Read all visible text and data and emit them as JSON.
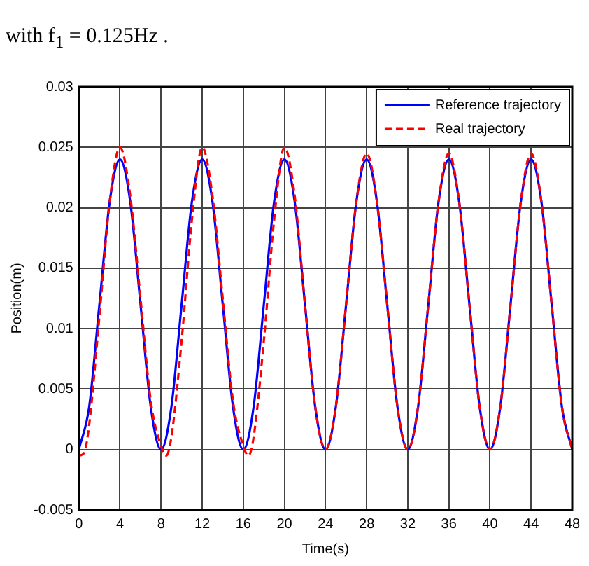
{
  "chart_data": {
    "type": "line",
    "xlabel": "Time(s)",
    "ylabel": "Position(m)",
    "annotations": [
      "with f$_{1}$ = 0.125Hz ."
    ],
    "x": [
      0,
      1,
      2,
      3,
      4,
      5,
      6,
      7,
      8,
      9,
      10,
      11,
      12,
      13,
      14,
      15,
      16,
      17,
      18,
      19,
      20,
      21,
      22,
      23,
      24,
      25,
      26,
      27,
      28,
      29,
      30,
      31,
      32,
      33,
      34,
      35,
      36,
      37,
      38,
      39,
      40,
      41,
      42,
      43,
      44,
      45,
      46,
      47,
      48
    ],
    "series": [
      {
        "name": "Reference trajectory",
        "color": "#0000ff",
        "line_style": "solid",
        "values": [
          0,
          0.0035,
          0.012,
          0.0205,
          0.024,
          0.0205,
          0.012,
          0.0035,
          0,
          0.0035,
          0.012,
          0.0205,
          0.024,
          0.0205,
          0.012,
          0.0035,
          0,
          0.0035,
          0.012,
          0.0205,
          0.024,
          0.0205,
          0.012,
          0.0035,
          0,
          0.0035,
          0.012,
          0.0205,
          0.024,
          0.0205,
          0.012,
          0.0035,
          0,
          0.0035,
          0.012,
          0.0205,
          0.024,
          0.0205,
          0.012,
          0.0035,
          0,
          0.0035,
          0.012,
          0.0205,
          0.024,
          0.0205,
          0.012,
          0.0035,
          0
        ]
      },
      {
        "name": "Real trajectory",
        "color": "#ff0000",
        "line_style": "dashed",
        "x": [
          0,
          0.5,
          1,
          2,
          3,
          4,
          5,
          6,
          7,
          8,
          8.5,
          9,
          10,
          11,
          12,
          13,
          14,
          15,
          16,
          16.5,
          17,
          18,
          19,
          20,
          21,
          22,
          23,
          24,
          25,
          26,
          27,
          28,
          29,
          30,
          31,
          32,
          33,
          34,
          35,
          36,
          37,
          38,
          39,
          40,
          41,
          42,
          43,
          44,
          45,
          46,
          47,
          48
        ],
        "values": [
          -0.0005,
          -0.0003,
          0.002,
          0.011,
          0.0205,
          0.025,
          0.021,
          0.0125,
          0.004,
          0.0003,
          -0.0005,
          0.001,
          0.009,
          0.019,
          0.025,
          0.021,
          0.0125,
          0.004,
          0.0003,
          -0.0005,
          0.001,
          0.009,
          0.019,
          0.025,
          0.021,
          0.012,
          0.0035,
          0,
          0.0035,
          0.012,
          0.0205,
          0.0245,
          0.0205,
          0.012,
          0.0035,
          0,
          0.0035,
          0.012,
          0.0205,
          0.0245,
          0.0205,
          0.012,
          0.0035,
          0,
          0.0035,
          0.012,
          0.0205,
          0.0245,
          0.0205,
          0.012,
          0.0035,
          0
        ]
      }
    ],
    "xlim": [
      0,
      48
    ],
    "xticks": [
      0,
      4,
      8,
      12,
      16,
      20,
      24,
      28,
      32,
      36,
      40,
      44,
      48
    ],
    "ylim": [
      -0.005,
      0.03
    ],
    "yticks": [
      -0.005,
      0,
      0.005,
      0.01,
      0.015,
      0.02,
      0.025,
      0.03
    ],
    "grid": true,
    "legend": "top right"
  }
}
